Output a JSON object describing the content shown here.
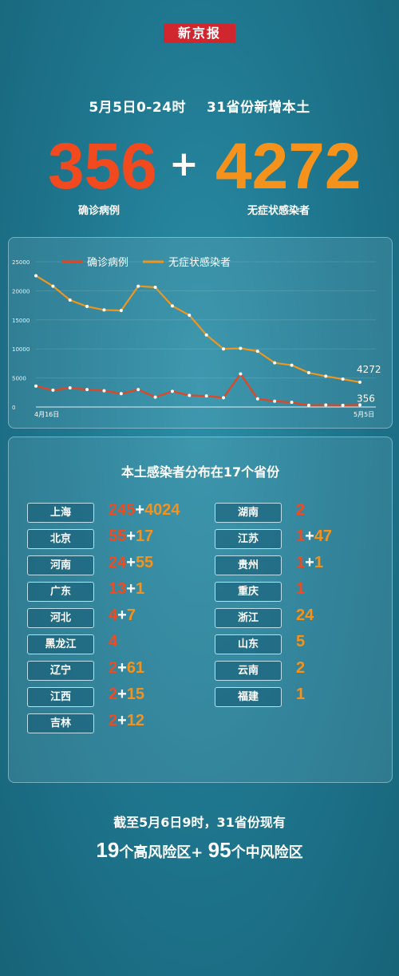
{
  "brand": "新京报",
  "headline": {
    "date": "5月5日0-24时",
    "scope": "31省份新增本土"
  },
  "totals": {
    "confirmed": "356",
    "plus": "+",
    "asymptomatic": "4272",
    "confirmed_label": "确诊病例",
    "asymptomatic_label": "无症状感染者"
  },
  "chart_data": {
    "type": "line",
    "x_start_label": "4月16日",
    "x_end_label": "5月5日",
    "y_ticks": [
      "25000",
      "20000",
      "15000",
      "10000",
      "5000",
      "0"
    ],
    "ylim": [
      0,
      25000
    ],
    "legend": [
      "确诊病例",
      "无症状感染者"
    ],
    "x": [
      "4月16日",
      "4月17日",
      "4月18日",
      "4月19日",
      "4月20日",
      "4月21日",
      "4月22日",
      "4月23日",
      "4月24日",
      "4月25日",
      "4月26日",
      "4月27日",
      "4月28日",
      "4月29日",
      "4月30日",
      "5月1日",
      "5月2日",
      "5月3日",
      "5月4日",
      "5月5日"
    ],
    "series": [
      {
        "name": "确诊病例",
        "color": "#e8431c",
        "values": [
          3600,
          2900,
          3300,
          3000,
          2800,
          2300,
          3000,
          1700,
          2700,
          2000,
          1900,
          1600,
          5700,
          1400,
          1000,
          800,
          300,
          350,
          300,
          356
        ]
      },
      {
        "name": "无症状感染者",
        "color": "#f0961c",
        "values": [
          22600,
          20800,
          18400,
          17300,
          16700,
          16600,
          20800,
          20600,
          17400,
          15800,
          12400,
          10000,
          10100,
          9600,
          7600,
          7200,
          5900,
          5300,
          4800,
          4272
        ]
      }
    ],
    "end_labels": [
      "4272",
      "356"
    ]
  },
  "distribution": {
    "title": "本土感染者分布在17个省份",
    "left": [
      {
        "province": "上海",
        "confirmed": "245",
        "asym": "4024"
      },
      {
        "province": "北京",
        "confirmed": "55",
        "asym": "17"
      },
      {
        "province": "河南",
        "confirmed": "24",
        "asym": "55"
      },
      {
        "province": "广东",
        "confirmed": "13",
        "asym": "1"
      },
      {
        "province": "河北",
        "confirmed": "4",
        "asym": "7"
      },
      {
        "province": "黑龙江",
        "confirmed": "4",
        "asym": ""
      },
      {
        "province": "辽宁",
        "confirmed": "2",
        "asym": "61"
      },
      {
        "province": "江西",
        "confirmed": "2",
        "asym": "15"
      },
      {
        "province": "吉林",
        "confirmed": "2",
        "asym": "12"
      }
    ],
    "right": [
      {
        "province": "湖南",
        "confirmed": "2",
        "asym": ""
      },
      {
        "province": "江苏",
        "confirmed": "1",
        "asym": "47"
      },
      {
        "province": "贵州",
        "confirmed": "1",
        "asym": "1"
      },
      {
        "province": "重庆",
        "confirmed": "1",
        "asym": ""
      },
      {
        "province": "浙江",
        "confirmed": "",
        "asym": "24"
      },
      {
        "province": "山东",
        "confirmed": "",
        "asym": "5"
      },
      {
        "province": "云南",
        "confirmed": "",
        "asym": "2"
      },
      {
        "province": "福建",
        "confirmed": "",
        "asym": "1"
      }
    ]
  },
  "footer": {
    "line1": "截至5月6日9时，31省份现有",
    "high_count": "19",
    "high_label": "个高风险区+ ",
    "mid_count": "95",
    "mid_label": "个中风险区"
  },
  "colors": {
    "confirmed": "#f24a1f",
    "asymptomatic": "#f5921c"
  }
}
